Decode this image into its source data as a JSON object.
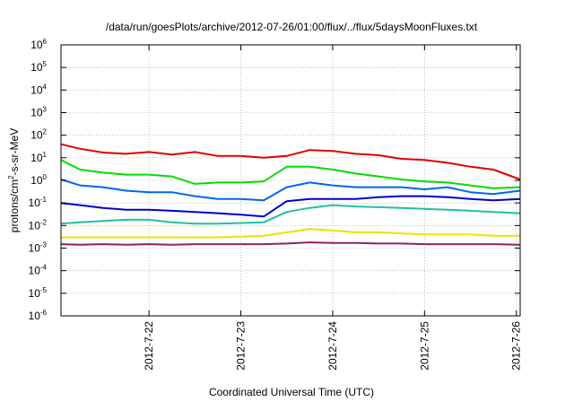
{
  "chart_data": {
    "type": "line",
    "title": "/data/run/goesPlots/archive/2012-07-26/01:00/flux/../flux/5daysMoonFluxes.txt",
    "xlabel": "Coordinated Universal Time (UTC)",
    "ylabel_parts": [
      "protons/cm",
      "2",
      "-s-sr-MeV"
    ],
    "yscale": "log",
    "ylim": [
      1e-06,
      1000000.0
    ],
    "xlim": [
      "2012-07-21 01:00",
      "2012-07-26 01:00"
    ],
    "grid": true,
    "y_ticks": [
      {
        "exp": "-6",
        "value": 1e-06
      },
      {
        "exp": "-5",
        "value": 1e-05
      },
      {
        "exp": "-4",
        "value": 0.0001
      },
      {
        "exp": "-3",
        "value": 0.001
      },
      {
        "exp": "-2",
        "value": 0.01
      },
      {
        "exp": "-1",
        "value": 0.1
      },
      {
        "exp": "0",
        "value": 1
      },
      {
        "exp": "1",
        "value": 10
      },
      {
        "exp": "2",
        "value": 100
      },
      {
        "exp": "3",
        "value": 1000
      },
      {
        "exp": "4",
        "value": 10000
      },
      {
        "exp": "5",
        "value": 100000
      },
      {
        "exp": "6",
        "value": 1000000
      }
    ],
    "x_ticks": [
      {
        "label": "2012-7-22",
        "date": "2012-07-22 00:00"
      },
      {
        "label": "2012-7-23",
        "date": "2012-07-23 00:00"
      },
      {
        "label": "2012-7-24",
        "date": "2012-07-24 00:00"
      },
      {
        "label": "2012-7-25",
        "date": "2012-07-25 00:00"
      },
      {
        "label": "2012-7-26",
        "date": "2012-07-26 00:00"
      }
    ],
    "x": [
      "2012-07-21 01:00",
      "2012-07-21 06:00",
      "2012-07-21 12:00",
      "2012-07-21 18:00",
      "2012-07-22 00:00",
      "2012-07-22 06:00",
      "2012-07-22 12:00",
      "2012-07-22 18:00",
      "2012-07-23 00:00",
      "2012-07-23 06:00",
      "2012-07-23 12:00",
      "2012-07-23 18:00",
      "2012-07-24 00:00",
      "2012-07-24 06:00",
      "2012-07-24 12:00",
      "2012-07-24 18:00",
      "2012-07-25 00:00",
      "2012-07-25 06:00",
      "2012-07-25 12:00",
      "2012-07-25 18:00",
      "2012-07-26 01:00"
    ],
    "series": [
      {
        "color": "#e00000",
        "values": [
          40,
          25,
          17,
          15,
          18,
          14,
          18,
          12,
          12,
          10,
          12,
          22,
          20,
          15,
          13,
          9,
          8,
          6,
          4,
          3,
          1.1
        ]
      },
      {
        "color": "#00dd00",
        "values": [
          8,
          3,
          2.2,
          1.8,
          1.8,
          1.5,
          0.7,
          0.8,
          0.8,
          0.9,
          4,
          4,
          3,
          2,
          1.5,
          1.1,
          0.9,
          0.8,
          0.6,
          0.45,
          0.5
        ]
      },
      {
        "color": "#0066ee",
        "values": [
          1.1,
          0.6,
          0.5,
          0.35,
          0.3,
          0.3,
          0.2,
          0.15,
          0.15,
          0.13,
          0.5,
          0.8,
          0.6,
          0.5,
          0.5,
          0.5,
          0.4,
          0.5,
          0.3,
          0.25,
          0.35
        ]
      },
      {
        "color": "#0000cc",
        "values": [
          0.1,
          0.08,
          0.06,
          0.05,
          0.05,
          0.045,
          0.04,
          0.035,
          0.03,
          0.025,
          0.12,
          0.15,
          0.15,
          0.15,
          0.18,
          0.2,
          0.2,
          0.18,
          0.15,
          0.13,
          0.15
        ]
      },
      {
        "color": "#20c0a0",
        "values": [
          0.012,
          0.014,
          0.016,
          0.018,
          0.018,
          0.014,
          0.012,
          0.012,
          0.013,
          0.014,
          0.04,
          0.06,
          0.08,
          0.07,
          0.065,
          0.06,
          0.055,
          0.05,
          0.045,
          0.04,
          0.035
        ]
      },
      {
        "color": "#f0e000",
        "values": [
          0.003,
          0.003,
          0.003,
          0.003,
          0.003,
          0.003,
          0.003,
          0.003,
          0.0032,
          0.0035,
          0.005,
          0.007,
          0.006,
          0.005,
          0.005,
          0.0045,
          0.004,
          0.004,
          0.004,
          0.0035,
          0.0035
        ]
      },
      {
        "color": "#902060",
        "values": [
          0.0015,
          0.0014,
          0.0015,
          0.0014,
          0.0015,
          0.0014,
          0.0015,
          0.0015,
          0.0015,
          0.0015,
          0.0016,
          0.0018,
          0.0017,
          0.0017,
          0.0016,
          0.0016,
          0.0015,
          0.0015,
          0.0015,
          0.0015,
          0.0014
        ]
      }
    ]
  }
}
